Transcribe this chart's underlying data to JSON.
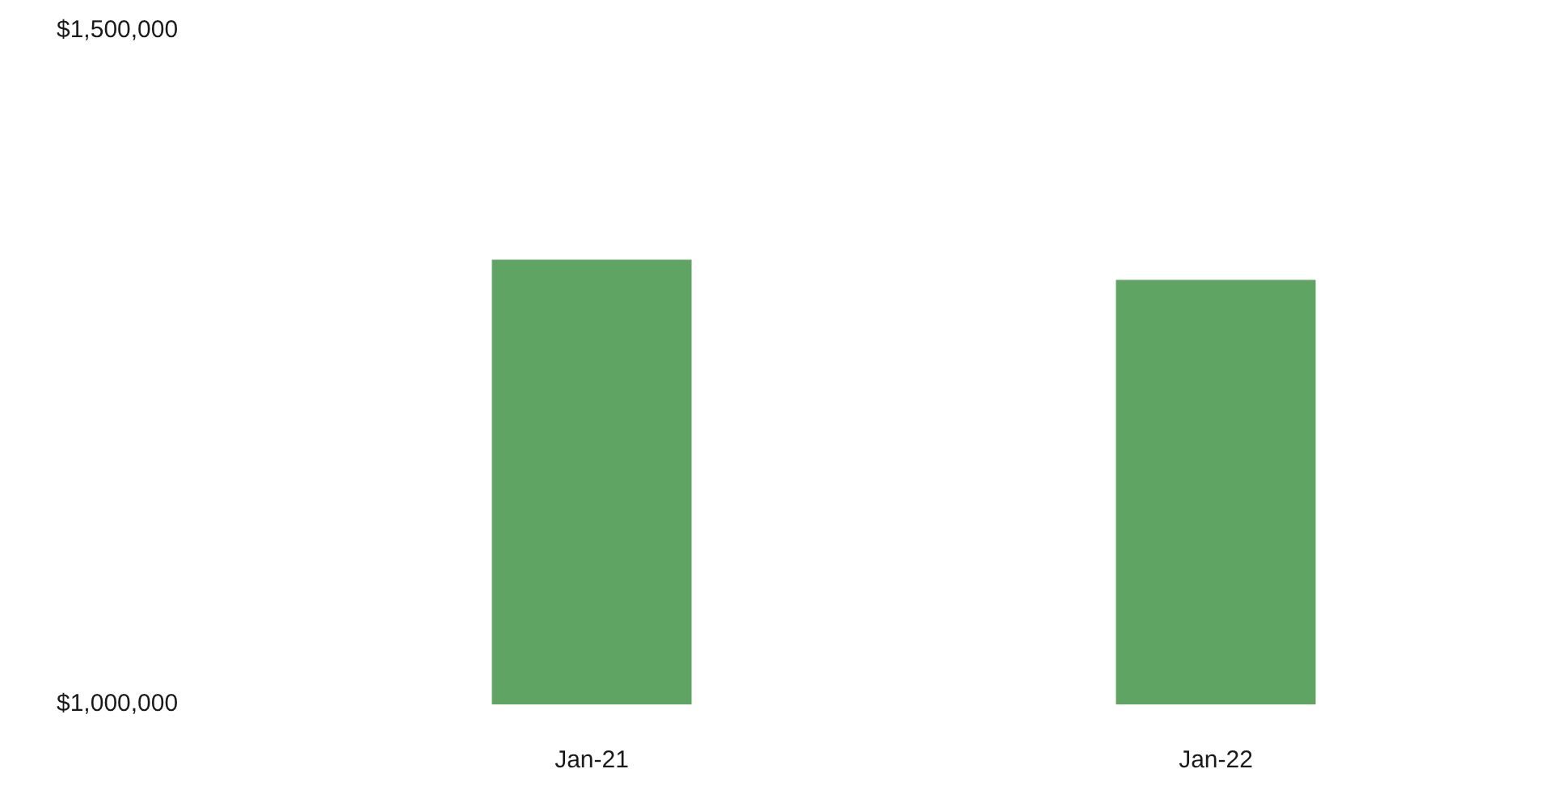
{
  "chart_data": {
    "type": "bar",
    "categories": [
      "Jan-21",
      "Jan-22"
    ],
    "values": [
      1330000,
      1315000
    ],
    "color": "#5fa463",
    "ylim": [
      1000000,
      1500000
    ],
    "yticks": [
      {
        "value": 1000000,
        "label": "$1,000,000"
      },
      {
        "value": 1500000,
        "label": "$1,500,000"
      }
    ],
    "grid": false
  }
}
